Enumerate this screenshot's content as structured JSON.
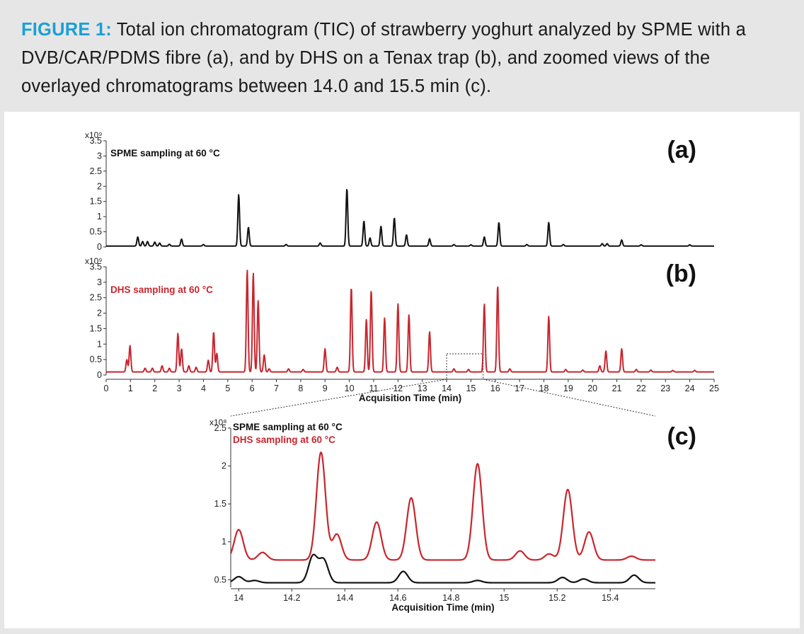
{
  "caption": {
    "label": "FIGURE 1:",
    "text": "Total ion chromatogram (TIC) of strawberry yoghurt analyzed by SPME with a DVB/CAR/PDMS fibre (a), and by DHS on a Tenax trap (b), and zoomed views of the overlayed chromatograms between 14.0 and 15.5 min (c)."
  },
  "colors": {
    "spme": "#111111",
    "dhs": "#c8262e",
    "accent": "#1aa0d8"
  },
  "chart_data": [
    {
      "type": "line",
      "panel_letter": "(a)",
      "y_multiplier": "x10⁹",
      "legend": [
        "SPME sampling at 60 °C"
      ],
      "ylim": [
        0,
        3.5
      ],
      "xlim": [
        0,
        25
      ],
      "y_ticks": [
        "0",
        "0.5",
        "1",
        "1.5",
        "2",
        "2.5",
        "3",
        "3.5"
      ],
      "series": [
        {
          "name": "SPME sampling at 60 °C",
          "baseline": 0.03,
          "peaks": [
            [
              1.3,
              0.3
            ],
            [
              1.5,
              0.15
            ],
            [
              1.7,
              0.15
            ],
            [
              2.0,
              0.13
            ],
            [
              2.2,
              0.1
            ],
            [
              2.6,
              0.06
            ],
            [
              3.1,
              0.23
            ],
            [
              4.0,
              0.05
            ],
            [
              5.45,
              1.7
            ],
            [
              5.85,
              0.62
            ],
            [
              7.4,
              0.05
            ],
            [
              8.8,
              0.1
            ],
            [
              9.9,
              1.9
            ],
            [
              10.6,
              0.83
            ],
            [
              10.85,
              0.27
            ],
            [
              11.3,
              0.65
            ],
            [
              11.85,
              0.93
            ],
            [
              12.35,
              0.37
            ],
            [
              13.3,
              0.24
            ],
            [
              14.3,
              0.05
            ],
            [
              15.0,
              0.04
            ],
            [
              15.55,
              0.3
            ],
            [
              16.15,
              0.78
            ],
            [
              17.3,
              0.05
            ],
            [
              18.2,
              0.78
            ],
            [
              18.8,
              0.05
            ],
            [
              20.4,
              0.08
            ],
            [
              20.6,
              0.08
            ],
            [
              21.2,
              0.2
            ],
            [
              22.0,
              0.04
            ],
            [
              24.0,
              0.04
            ]
          ]
        }
      ]
    },
    {
      "type": "line",
      "panel_letter": "(b)",
      "y_multiplier": "x10⁹",
      "legend": [
        "DHS sampling at 60 °C"
      ],
      "ylim": [
        0,
        3.5
      ],
      "xlim": [
        0,
        25
      ],
      "y_ticks": [
        "0",
        "0.5",
        "1",
        "1.5",
        "2",
        "2.5",
        "3",
        "3.5"
      ],
      "x_ticks": [
        "0",
        "1",
        "2",
        "3",
        "4",
        "5",
        "6",
        "7",
        "8",
        "9",
        "10",
        "11",
        "12",
        "13",
        "14",
        "15",
        "16",
        "17",
        "18",
        "19",
        "20",
        "21",
        "22",
        "23",
        "24",
        "25"
      ],
      "xlabel": "Acquisition Time (min)",
      "zoom_window": [
        14.0,
        15.5
      ],
      "series": [
        {
          "name": "DHS sampling at 60 °C",
          "baseline": 0.1,
          "peaks": [
            [
              0.85,
              0.4
            ],
            [
              0.98,
              0.85
            ],
            [
              1.6,
              0.12
            ],
            [
              1.9,
              0.12
            ],
            [
              2.3,
              0.2
            ],
            [
              2.6,
              0.12
            ],
            [
              2.95,
              1.25
            ],
            [
              3.1,
              0.75
            ],
            [
              3.4,
              0.2
            ],
            [
              3.7,
              0.15
            ],
            [
              4.2,
              0.38
            ],
            [
              4.42,
              1.3
            ],
            [
              4.55,
              0.6
            ],
            [
              5.8,
              3.3
            ],
            [
              6.05,
              3.2
            ],
            [
              6.25,
              2.3
            ],
            [
              6.5,
              0.55
            ],
            [
              6.7,
              0.1
            ],
            [
              7.5,
              0.1
            ],
            [
              8.1,
              0.08
            ],
            [
              9.0,
              0.75
            ],
            [
              9.5,
              0.15
            ],
            [
              10.08,
              2.75
            ],
            [
              10.7,
              1.7
            ],
            [
              10.9,
              2.65
            ],
            [
              11.45,
              1.75
            ],
            [
              12.0,
              2.2
            ],
            [
              12.45,
              1.85
            ],
            [
              13.3,
              1.3
            ],
            [
              14.3,
              0.1
            ],
            [
              14.9,
              0.08
            ],
            [
              15.55,
              2.2
            ],
            [
              16.1,
              2.8
            ],
            [
              16.6,
              0.1
            ],
            [
              18.2,
              1.8
            ],
            [
              18.9,
              0.08
            ],
            [
              19.6,
              0.06
            ],
            [
              20.3,
              0.2
            ],
            [
              20.55,
              0.68
            ],
            [
              21.2,
              0.75
            ],
            [
              21.8,
              0.08
            ],
            [
              22.4,
              0.06
            ],
            [
              23.3,
              0.05
            ],
            [
              24.2,
              0.05
            ]
          ]
        }
      ]
    },
    {
      "type": "line",
      "panel_letter": "(c)",
      "y_multiplier": "x10⁸",
      "legend": [
        "SPME sampling at 60 °C",
        "DHS sampling at 60 °C"
      ],
      "ylim": [
        0.4,
        2.5
      ],
      "xlim": [
        13.97,
        15.57
      ],
      "y_ticks": [
        "0.5",
        "1",
        "1.5",
        "2",
        "2.5"
      ],
      "x_ticks": [
        "14",
        "14.2",
        "14.4",
        "14.6",
        "14.8",
        "15",
        "15.2",
        "15.4"
      ],
      "xlabel": "Acquisition Time (min)",
      "series": [
        {
          "name": "SPME sampling at 60 °C",
          "baseline": 0.46,
          "peaks": [
            [
              14.0,
              0.08
            ],
            [
              14.06,
              0.03
            ],
            [
              14.28,
              0.35
            ],
            [
              14.32,
              0.3
            ],
            [
              14.62,
              0.15
            ],
            [
              14.9,
              0.03
            ],
            [
              15.22,
              0.07
            ],
            [
              15.3,
              0.05
            ],
            [
              15.49,
              0.1
            ]
          ]
        },
        {
          "name": "DHS sampling at 60 °C",
          "baseline": 0.76,
          "peaks": [
            [
              14.0,
              0.4
            ],
            [
              14.09,
              0.1
            ],
            [
              14.31,
              1.42
            ],
            [
              14.37,
              0.34
            ],
            [
              14.52,
              0.5
            ],
            [
              14.65,
              0.82
            ],
            [
              14.9,
              1.27
            ],
            [
              15.06,
              0.12
            ],
            [
              15.17,
              0.08
            ],
            [
              15.24,
              0.93
            ],
            [
              15.32,
              0.37
            ],
            [
              15.48,
              0.05
            ]
          ]
        }
      ]
    }
  ]
}
